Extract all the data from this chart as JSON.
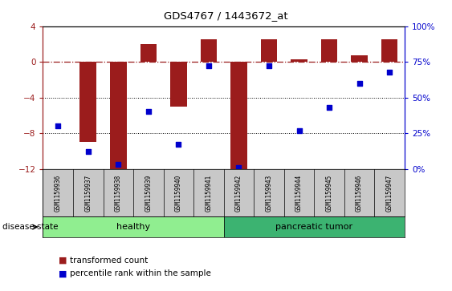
{
  "title": "GDS4767 / 1443672_at",
  "samples": [
    "GSM1159936",
    "GSM1159937",
    "GSM1159938",
    "GSM1159939",
    "GSM1159940",
    "GSM1159941",
    "GSM1159942",
    "GSM1159943",
    "GSM1159944",
    "GSM1159945",
    "GSM1159946",
    "GSM1159947"
  ],
  "bar_values": [
    0.0,
    -9.0,
    -12.0,
    2.0,
    -5.0,
    2.5,
    -12.0,
    2.5,
    0.3,
    2.5,
    0.7,
    2.5
  ],
  "percentile_values": [
    30,
    12,
    3,
    40,
    17,
    72,
    1,
    72,
    27,
    43,
    60,
    68
  ],
  "bar_color": "#9B1C1C",
  "dot_color": "#0000CC",
  "left_ylim": [
    -12,
    4
  ],
  "right_ylim": [
    0,
    100
  ],
  "left_yticks": [
    -12,
    -8,
    -4,
    0,
    4
  ],
  "right_yticks": [
    0,
    25,
    50,
    75,
    100
  ],
  "right_yticklabels": [
    "0%",
    "25%",
    "50%",
    "75%",
    "100%"
  ],
  "hline_y": 0,
  "dotted_hlines": [
    -4,
    -8
  ],
  "groups": [
    {
      "label": "healthy",
      "start": 0,
      "end": 5,
      "color": "#90EE90"
    },
    {
      "label": "pancreatic tumor",
      "start": 6,
      "end": 11,
      "color": "#3CB371"
    }
  ],
  "disease_state_label": "disease state",
  "legend_items": [
    {
      "label": "transformed count",
      "color": "#9B1C1C"
    },
    {
      "label": "percentile rank within the sample",
      "color": "#0000CC"
    }
  ],
  "bg_color": "#FFFFFF",
  "tick_label_area_color": "#C8C8C8"
}
